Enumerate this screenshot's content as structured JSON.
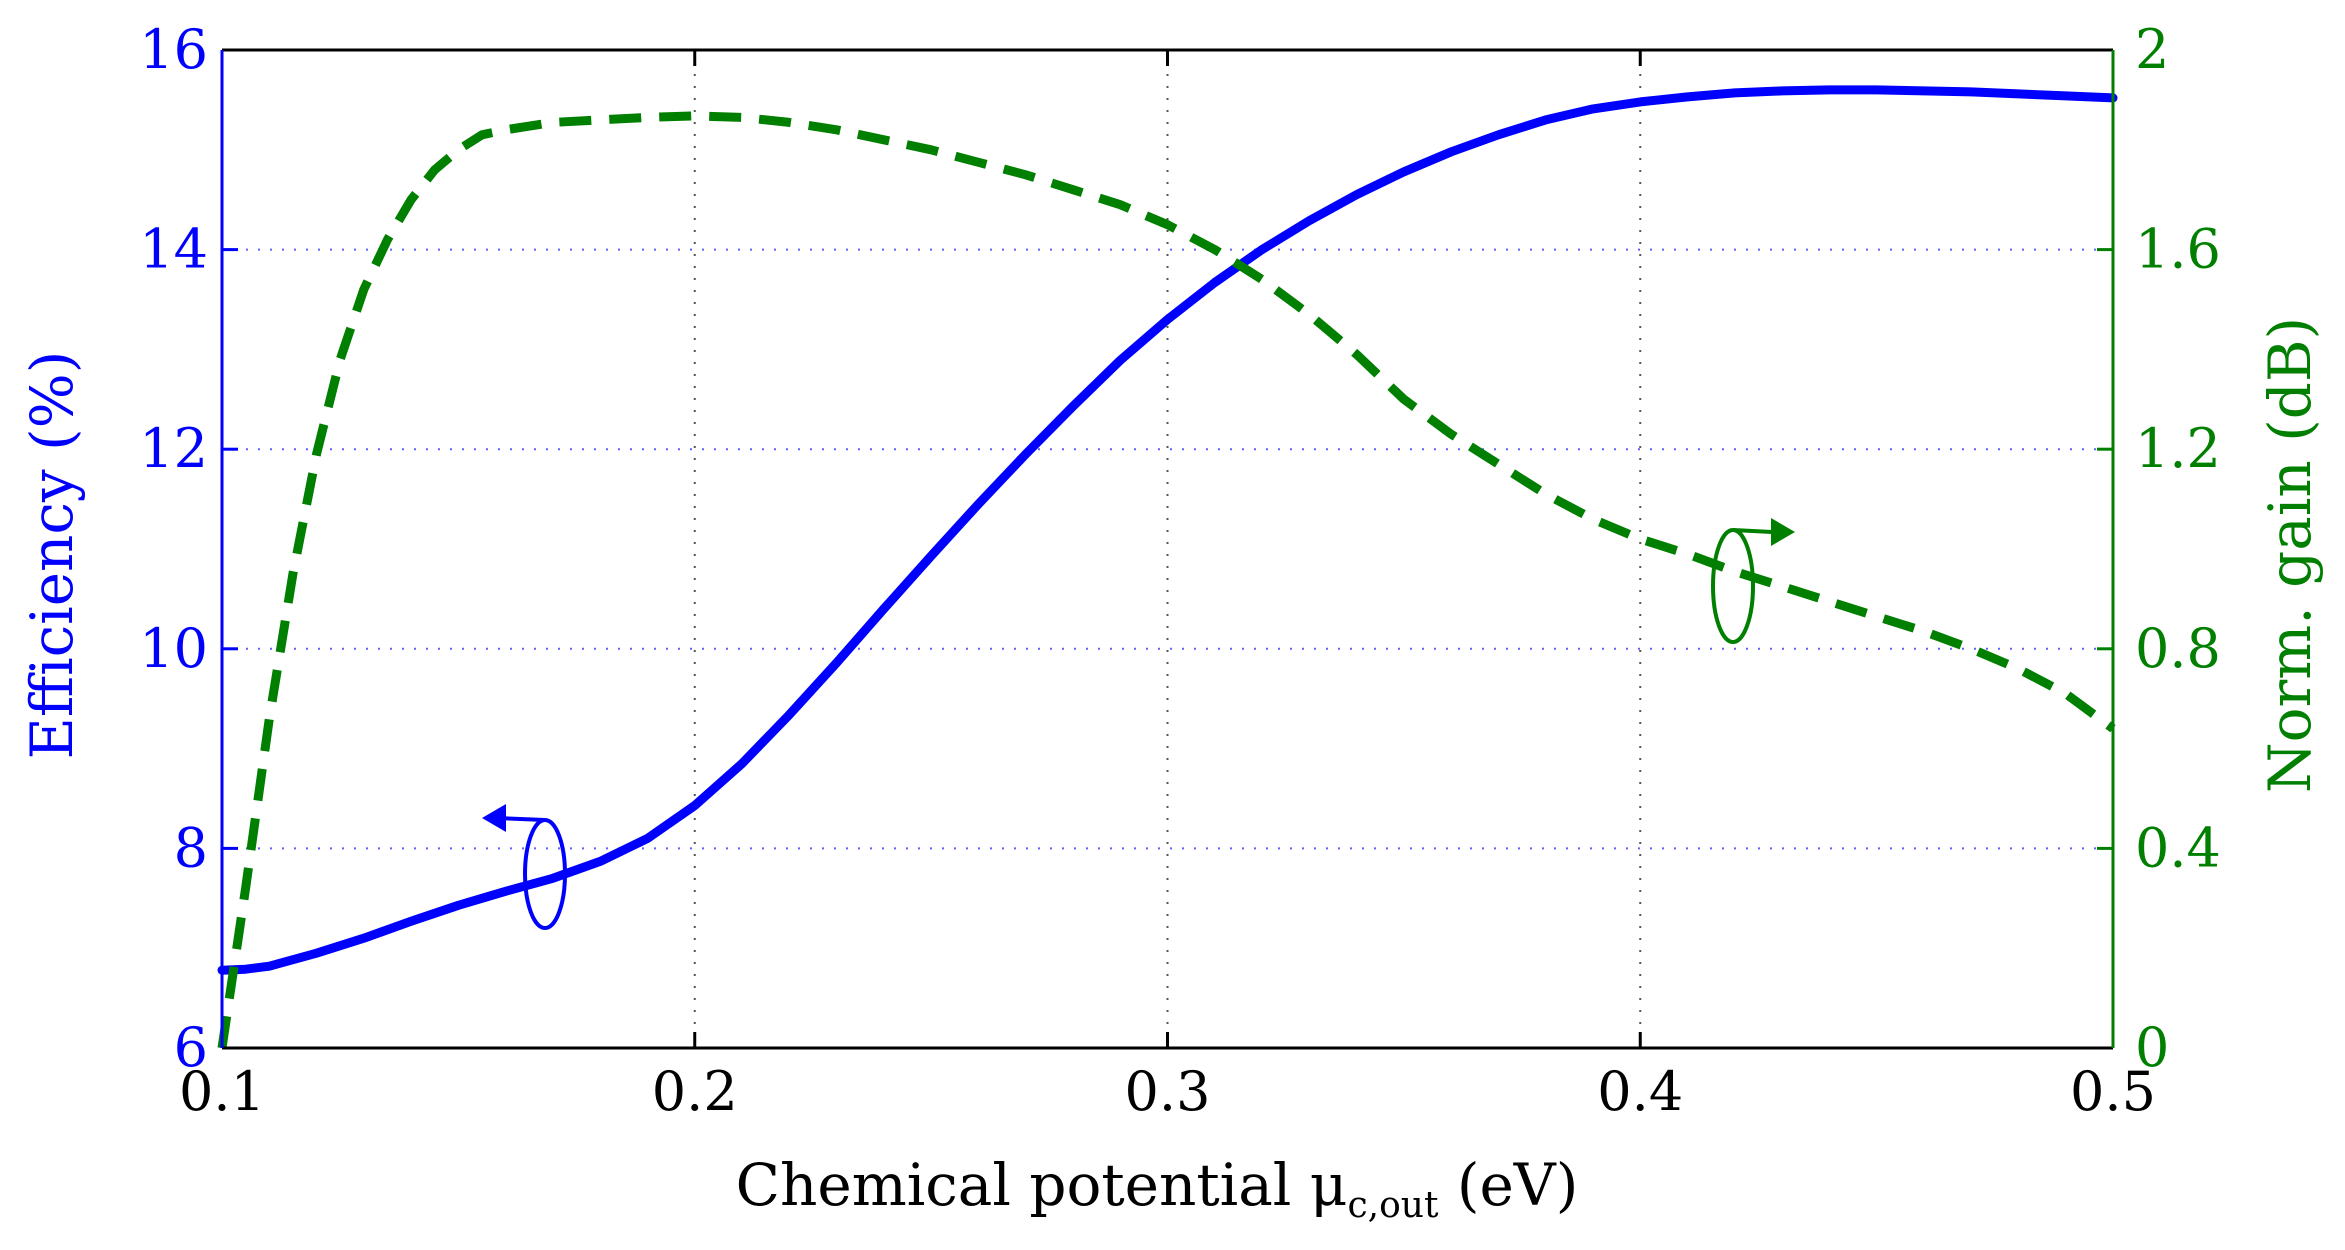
{
  "chart_data": {
    "type": "line",
    "title": "",
    "xlabel_main": "Chemical potential μ",
    "xlabel_sub": "c,out",
    "xlabel_unit": " (eV)",
    "ylabel_left": "Efficiency (%)",
    "ylabel_right": "Norm. gain (dB)",
    "xlim": [
      0.1,
      0.5
    ],
    "ylim_left": [
      6,
      16
    ],
    "ylim_right": [
      0,
      2
    ],
    "grid": true,
    "x_ticks": [
      "0.1",
      "0.2",
      "0.3",
      "0.4",
      "0.5"
    ],
    "y_left_ticks": [
      "6",
      "8",
      "10",
      "12",
      "14",
      "16"
    ],
    "y_right_ticks": [
      "0",
      "0.4",
      "0.8",
      "1.2",
      "1.6",
      "2"
    ],
    "colors": {
      "left": "#0000ff",
      "right": "#007f00",
      "grid": "#555555",
      "axis": "#000000"
    },
    "series": [
      {
        "name": "Efficiency",
        "axis": "left",
        "style": "solid",
        "x": [
          0.1,
          0.105,
          0.11,
          0.12,
          0.13,
          0.14,
          0.15,
          0.16,
          0.17,
          0.18,
          0.19,
          0.2,
          0.21,
          0.22,
          0.23,
          0.24,
          0.25,
          0.26,
          0.27,
          0.28,
          0.29,
          0.3,
          0.31,
          0.32,
          0.33,
          0.34,
          0.35,
          0.36,
          0.37,
          0.38,
          0.39,
          0.4,
          0.41,
          0.42,
          0.43,
          0.44,
          0.45,
          0.46,
          0.47,
          0.48,
          0.49,
          0.5
        ],
        "values": [
          6.78,
          6.79,
          6.82,
          6.95,
          7.1,
          7.27,
          7.43,
          7.57,
          7.7,
          7.87,
          8.1,
          8.43,
          8.85,
          9.34,
          9.86,
          10.4,
          10.93,
          11.45,
          11.95,
          12.43,
          12.89,
          13.3,
          13.67,
          14.0,
          14.29,
          14.55,
          14.78,
          14.98,
          15.15,
          15.3,
          15.41,
          15.48,
          15.53,
          15.57,
          15.59,
          15.6,
          15.6,
          15.59,
          15.58,
          15.56,
          15.54,
          15.52
        ]
      },
      {
        "name": "Norm. gain",
        "axis": "right",
        "style": "dashed",
        "x": [
          0.1,
          0.105,
          0.11,
          0.115,
          0.12,
          0.125,
          0.13,
          0.135,
          0.14,
          0.145,
          0.15,
          0.155,
          0.16,
          0.17,
          0.18,
          0.19,
          0.2,
          0.21,
          0.22,
          0.23,
          0.24,
          0.25,
          0.26,
          0.27,
          0.28,
          0.29,
          0.3,
          0.31,
          0.32,
          0.33,
          0.34,
          0.35,
          0.36,
          0.37,
          0.38,
          0.39,
          0.4,
          0.41,
          0.42,
          0.43,
          0.44,
          0.45,
          0.46,
          0.47,
          0.48,
          0.49,
          0.5
        ],
        "values": [
          0.0,
          0.32,
          0.66,
          0.95,
          1.19,
          1.38,
          1.52,
          1.62,
          1.7,
          1.76,
          1.8,
          1.83,
          1.84,
          1.855,
          1.86,
          1.865,
          1.868,
          1.865,
          1.855,
          1.84,
          1.82,
          1.8,
          1.775,
          1.75,
          1.72,
          1.69,
          1.65,
          1.6,
          1.54,
          1.47,
          1.39,
          1.3,
          1.23,
          1.17,
          1.11,
          1.06,
          1.02,
          0.99,
          0.955,
          0.925,
          0.895,
          0.865,
          0.835,
          0.8,
          0.76,
          0.71,
          0.64
        ]
      }
    ]
  }
}
